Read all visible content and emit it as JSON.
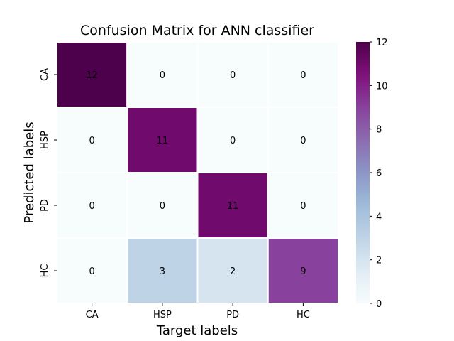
{
  "chart_data": {
    "type": "heatmap",
    "title": "Confusion Matrix for ANN classifier",
    "xlabel": "Target labels",
    "ylabel": "Predicted labels",
    "x_categories": [
      "CA",
      "HSP",
      "PD",
      "HC"
    ],
    "y_categories": [
      "CA",
      "HSP",
      "PD",
      "HC"
    ],
    "matrix": [
      [
        12,
        0,
        0,
        0
      ],
      [
        0,
        11,
        0,
        0
      ],
      [
        0,
        0,
        11,
        0
      ],
      [
        0,
        3,
        2,
        9
      ]
    ],
    "colormap": "BuPu",
    "vmin": 0,
    "vmax": 12,
    "colorbar_ticks": [
      0,
      2,
      4,
      6,
      8,
      10,
      12
    ],
    "annotations": true
  }
}
